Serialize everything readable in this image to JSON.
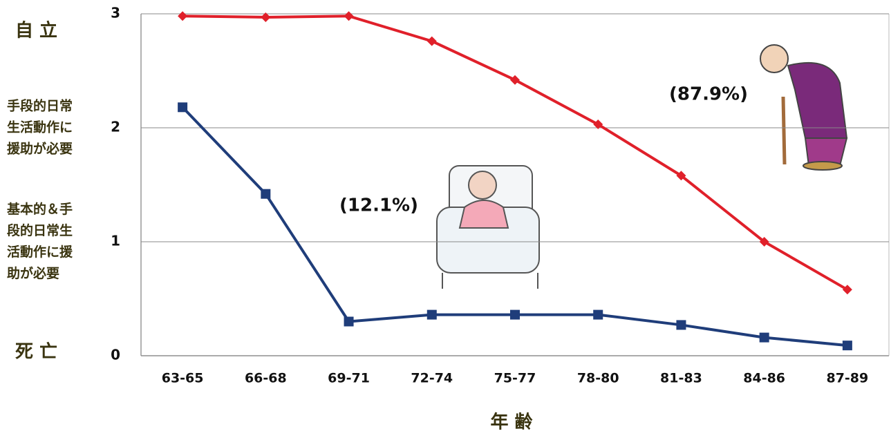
{
  "chart_data": {
    "type": "line",
    "categories": [
      "63-65",
      "66-68",
      "69-71",
      "72-74",
      "75-77",
      "78-80",
      "81-83",
      "84-86",
      "87-89"
    ],
    "series": [
      {
        "color": "#e0202a",
        "marker": "diamond",
        "values": [
          2.98,
          2.97,
          2.98,
          2.76,
          2.42,
          2.03,
          1.58,
          1.0,
          0.58
        ]
      },
      {
        "color": "#1f3d7a",
        "marker": "square",
        "values": [
          2.18,
          1.42,
          0.3,
          0.36,
          0.36,
          0.36,
          0.27,
          0.16,
          0.09
        ]
      }
    ],
    "ylim": [
      0,
      3
    ],
    "yticks": [
      0,
      1,
      2,
      3
    ],
    "grid": true,
    "side_labels": [
      [
        "死 亡"
      ],
      [
        "基本的＆手",
        "段的日常生",
        "活動作に援",
        "助が必要"
      ],
      [
        "手段的日常",
        "生活動作に",
        "援助が必要"
      ],
      [
        "自 立"
      ]
    ],
    "xlabel": "年 齢",
    "annotations": [
      "(87.9%)",
      "(12.1%)"
    ]
  }
}
